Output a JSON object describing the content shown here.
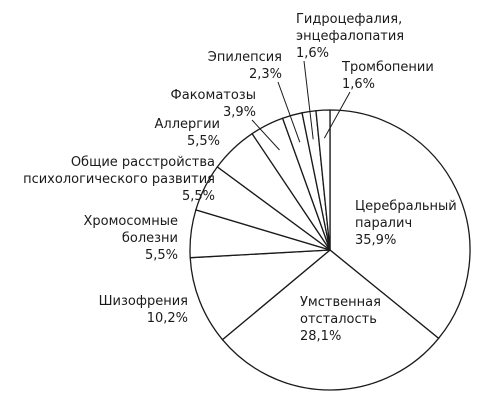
{
  "chart_data": {
    "type": "pie",
    "title": "",
    "slices": [
      {
        "label_lines": [
          "Церебральный",
          "паралич"
        ],
        "value_text": "35,9%",
        "value": 35.9
      },
      {
        "label_lines": [
          "Умственная",
          "отсталость"
        ],
        "value_text": "28,1%",
        "value": 28.1
      },
      {
        "label_lines": [
          "Шизофрения"
        ],
        "value_text": "10,2%",
        "value": 10.2
      },
      {
        "label_lines": [
          "Хромосомные",
          "болезни"
        ],
        "value_text": "5,5%",
        "value": 5.5
      },
      {
        "label_lines": [
          "Общие расстройства",
          "психологического развития"
        ],
        "value_text": "5,5%",
        "value": 5.5
      },
      {
        "label_lines": [
          "Аллергии"
        ],
        "value_text": "5,5%",
        "value": 5.5
      },
      {
        "label_lines": [
          "Факоматозы"
        ],
        "value_text": "3,9%",
        "value": 3.9
      },
      {
        "label_lines": [
          "Эпилепсия"
        ],
        "value_text": "2,3%",
        "value": 2.3
      },
      {
        "label_lines": [
          "Гидроцефалия,",
          "энцефалопатия"
        ],
        "value_text": "1,6%",
        "value": 1.6
      },
      {
        "label_lines": [
          "Тромбопении"
        ],
        "value_text": "1,6%",
        "value": 1.6
      }
    ],
    "colors": {
      "fill": "#ffffff",
      "stroke": "#1a1a1a"
    },
    "legend": "none",
    "grid": false
  }
}
